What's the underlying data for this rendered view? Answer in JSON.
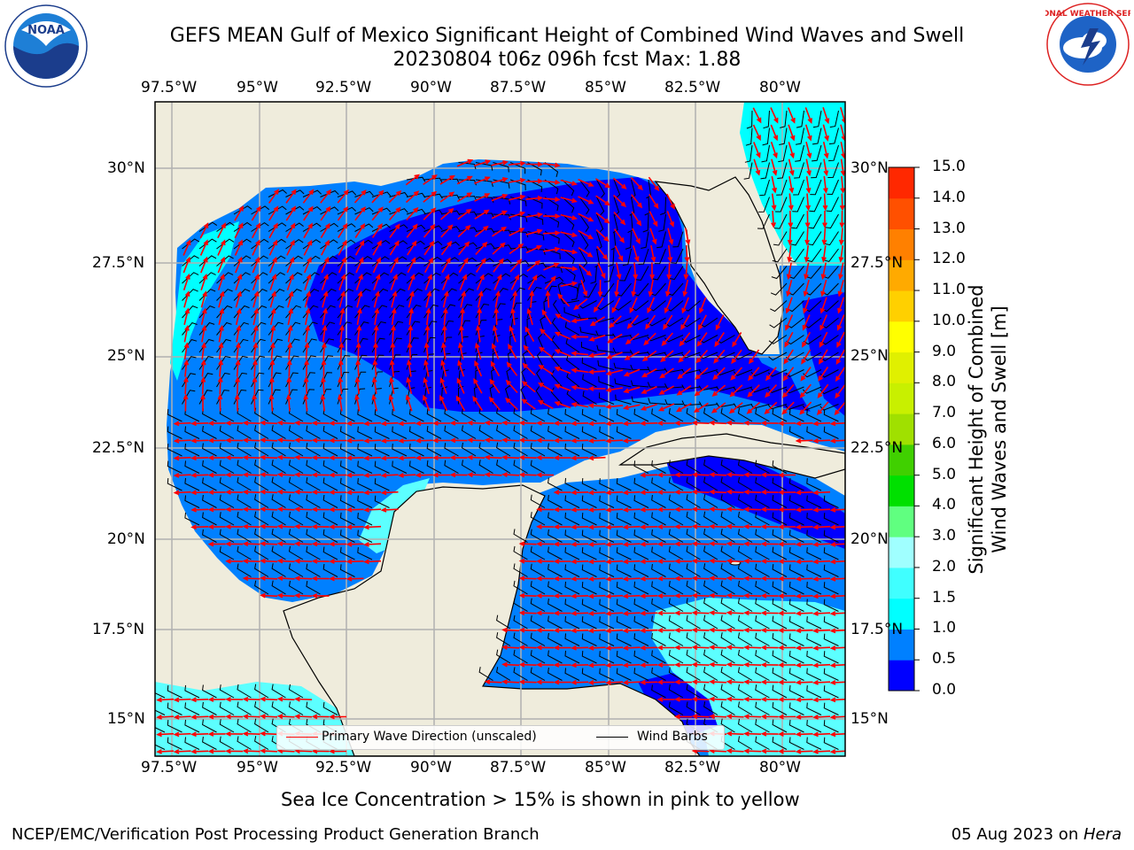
{
  "title": {
    "line1": "GEFS MEAN Gulf of Mexico Significant Height of Combined Wind Waves and Swell",
    "line2": "20230804 t06z 096h fcst   Max: 1.88"
  },
  "axes": {
    "lon_labels": [
      "97.5°W",
      "95°W",
      "92.5°W",
      "90°W",
      "87.5°W",
      "85°W",
      "82.5°W",
      "80°W"
    ],
    "lat_labels": [
      "30°N",
      "27.5°N",
      "25°N",
      "22.5°N",
      "20°N",
      "17.5°N",
      "15°N"
    ]
  },
  "colorbar": {
    "label_line1": "Significant Height of Combined",
    "label_line2": "Wind Waves and Swell [m]",
    "ticks": [
      "0.0",
      "0.5",
      "1.0",
      "1.5",
      "2.0",
      "3.0",
      "4.0",
      "5.0",
      "6.0",
      "7.0",
      "8.0",
      "9.0",
      "10.0",
      "11.0",
      "12.0",
      "13.0",
      "14.0",
      "15.0"
    ],
    "colors": [
      "#0000ff",
      "#0080ff",
      "#00ffff",
      "#40ffff",
      "#a0ffff",
      "#60ff80",
      "#00e000",
      "#40d000",
      "#a0e000",
      "#c8f000",
      "#e0f000",
      "#ffff00",
      "#ffd000",
      "#ffaa00",
      "#ff8000",
      "#ff5000",
      "#ff2800",
      "#ff0000"
    ]
  },
  "legend": {
    "wave_dir": "Primary Wave Direction (unscaled)",
    "wind_barbs": "Wind Barbs",
    "wave_color": "#ff0000",
    "barb_color": "#000000"
  },
  "sea_ice_note": "Sea Ice Concentration > 15% is shown in pink to yellow",
  "footer": {
    "left": "NCEP/EMC/Verification Post Processing Product Generation Branch",
    "date": "05 Aug 2023 on ",
    "machine": "Hera"
  },
  "logos": {
    "left": "NOAA",
    "right": "NATIONAL WEATHER SERVICE"
  },
  "colors": {
    "land": "#efecdc",
    "sea_deep": "#0000ff",
    "sea_mid": "#0080ff",
    "sea_light": "#00ffff",
    "sea_pale": "#5cffff"
  }
}
